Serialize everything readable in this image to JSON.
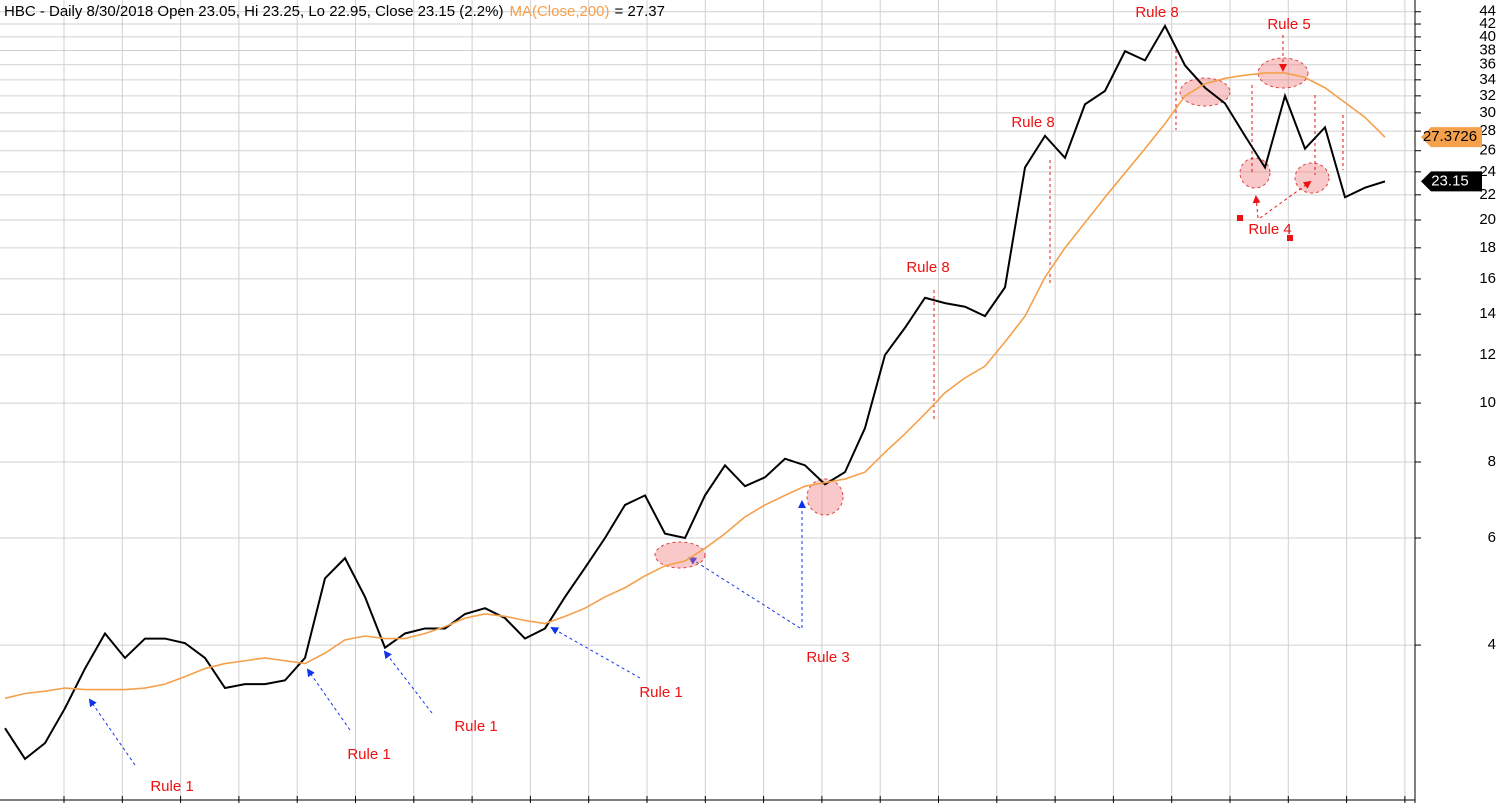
{
  "chart_data": {
    "type": "line",
    "title": "HBC - Daily 8/30/2018 Open 23.05, Hi 23.25, Lo 22.95, Close 23.15 (2.2%)",
    "ma_value_text": "= 27.37",
    "log_scale": true,
    "grid": true,
    "ylim": [
      2.2,
      46
    ],
    "yticks": [
      4,
      6,
      8,
      10,
      12,
      14,
      16,
      18,
      20,
      22,
      24,
      26,
      28,
      30,
      32,
      34,
      36,
      38,
      40,
      42,
      44
    ],
    "series": [
      {
        "name": "HBC",
        "color": "#000000",
        "last_value": 23.15,
        "values": [
          2.92,
          2.6,
          2.76,
          3.15,
          3.66,
          4.18,
          3.81,
          4.1,
          4.1,
          4.03,
          3.81,
          3.4,
          3.45,
          3.45,
          3.5,
          3.81,
          5.15,
          5.56,
          4.8,
          3.96,
          4.18,
          4.26,
          4.26,
          4.5,
          4.6,
          4.43,
          4.1,
          4.26,
          4.8,
          5.36,
          6.0,
          6.8,
          7.05,
          6.1,
          6.0,
          7.05,
          7.9,
          7.3,
          7.55,
          8.1,
          7.9,
          7.35,
          7.7,
          9.1,
          12.0,
          13.3,
          14.9,
          14.6,
          14.4,
          13.9,
          15.5,
          24.4,
          27.5,
          25.3,
          31.0,
          32.6,
          37.9,
          36.6,
          41.7,
          35.9,
          33.0,
          31.1,
          27.5,
          24.4,
          32.0,
          26.2,
          28.4,
          21.8,
          22.6,
          23.15
        ]
      },
      {
        "name": "MA(Close,200)",
        "color": "#f5a04a",
        "last_value": 27.3726,
        "values": [
          3.27,
          3.33,
          3.36,
          3.4,
          3.38,
          3.38,
          3.38,
          3.4,
          3.45,
          3.55,
          3.66,
          3.73,
          3.77,
          3.81,
          3.77,
          3.73,
          3.88,
          4.08,
          4.14,
          4.1,
          4.1,
          4.18,
          4.29,
          4.43,
          4.5,
          4.46,
          4.39,
          4.34,
          4.46,
          4.6,
          4.8,
          4.97,
          5.2,
          5.4,
          5.5,
          5.77,
          6.1,
          6.5,
          6.8,
          7.05,
          7.3,
          7.4,
          7.5,
          7.7,
          8.3,
          8.9,
          9.6,
          10.4,
          11.0,
          11.5,
          12.6,
          13.9,
          16.1,
          18.0,
          19.8,
          21.8,
          23.9,
          26.2,
          28.8,
          32.0,
          33.5,
          34.2,
          34.6,
          34.9,
          34.9,
          34.3,
          33.0,
          31.2,
          29.5,
          27.37
        ]
      }
    ],
    "annotations": [
      {
        "text": "Rule 1",
        "color": "#ee1111"
      },
      {
        "text": "Rule 1",
        "color": "#ee1111"
      },
      {
        "text": "Rule 1",
        "color": "#ee1111"
      },
      {
        "text": "Rule 1",
        "color": "#ee1111"
      },
      {
        "text": "Rule 3",
        "color": "#ee1111"
      },
      {
        "text": "Rule 8",
        "color": "#ee1111"
      },
      {
        "text": "Rule 8",
        "color": "#ee1111"
      },
      {
        "text": "Rule 8",
        "color": "#ee1111"
      },
      {
        "text": "Rule 5",
        "color": "#ee1111"
      },
      {
        "text": "Rule  4",
        "color": "#ee1111"
      }
    ]
  }
}
